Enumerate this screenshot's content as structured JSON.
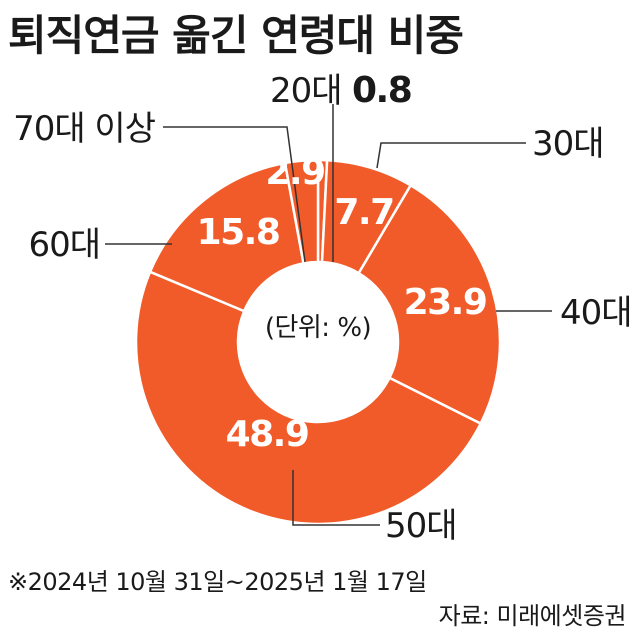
{
  "title": "퇴직연금 옮긴 연령대 비중",
  "note": "※2024년 10월 31일~2025년 1월 17일",
  "source": "자료: 미래에셋증권",
  "chart_data": {
    "type": "pie",
    "center_label": "(단위: %)",
    "categories": [
      "20대",
      "30대",
      "40대",
      "50대",
      "60대",
      "70대 이상"
    ],
    "values": [
      0.8,
      7.7,
      23.9,
      48.9,
      15.8,
      2.9
    ],
    "colors": {
      "slice": "#f15a29",
      "separator": "#ffffff",
      "leader": "#333333"
    }
  }
}
